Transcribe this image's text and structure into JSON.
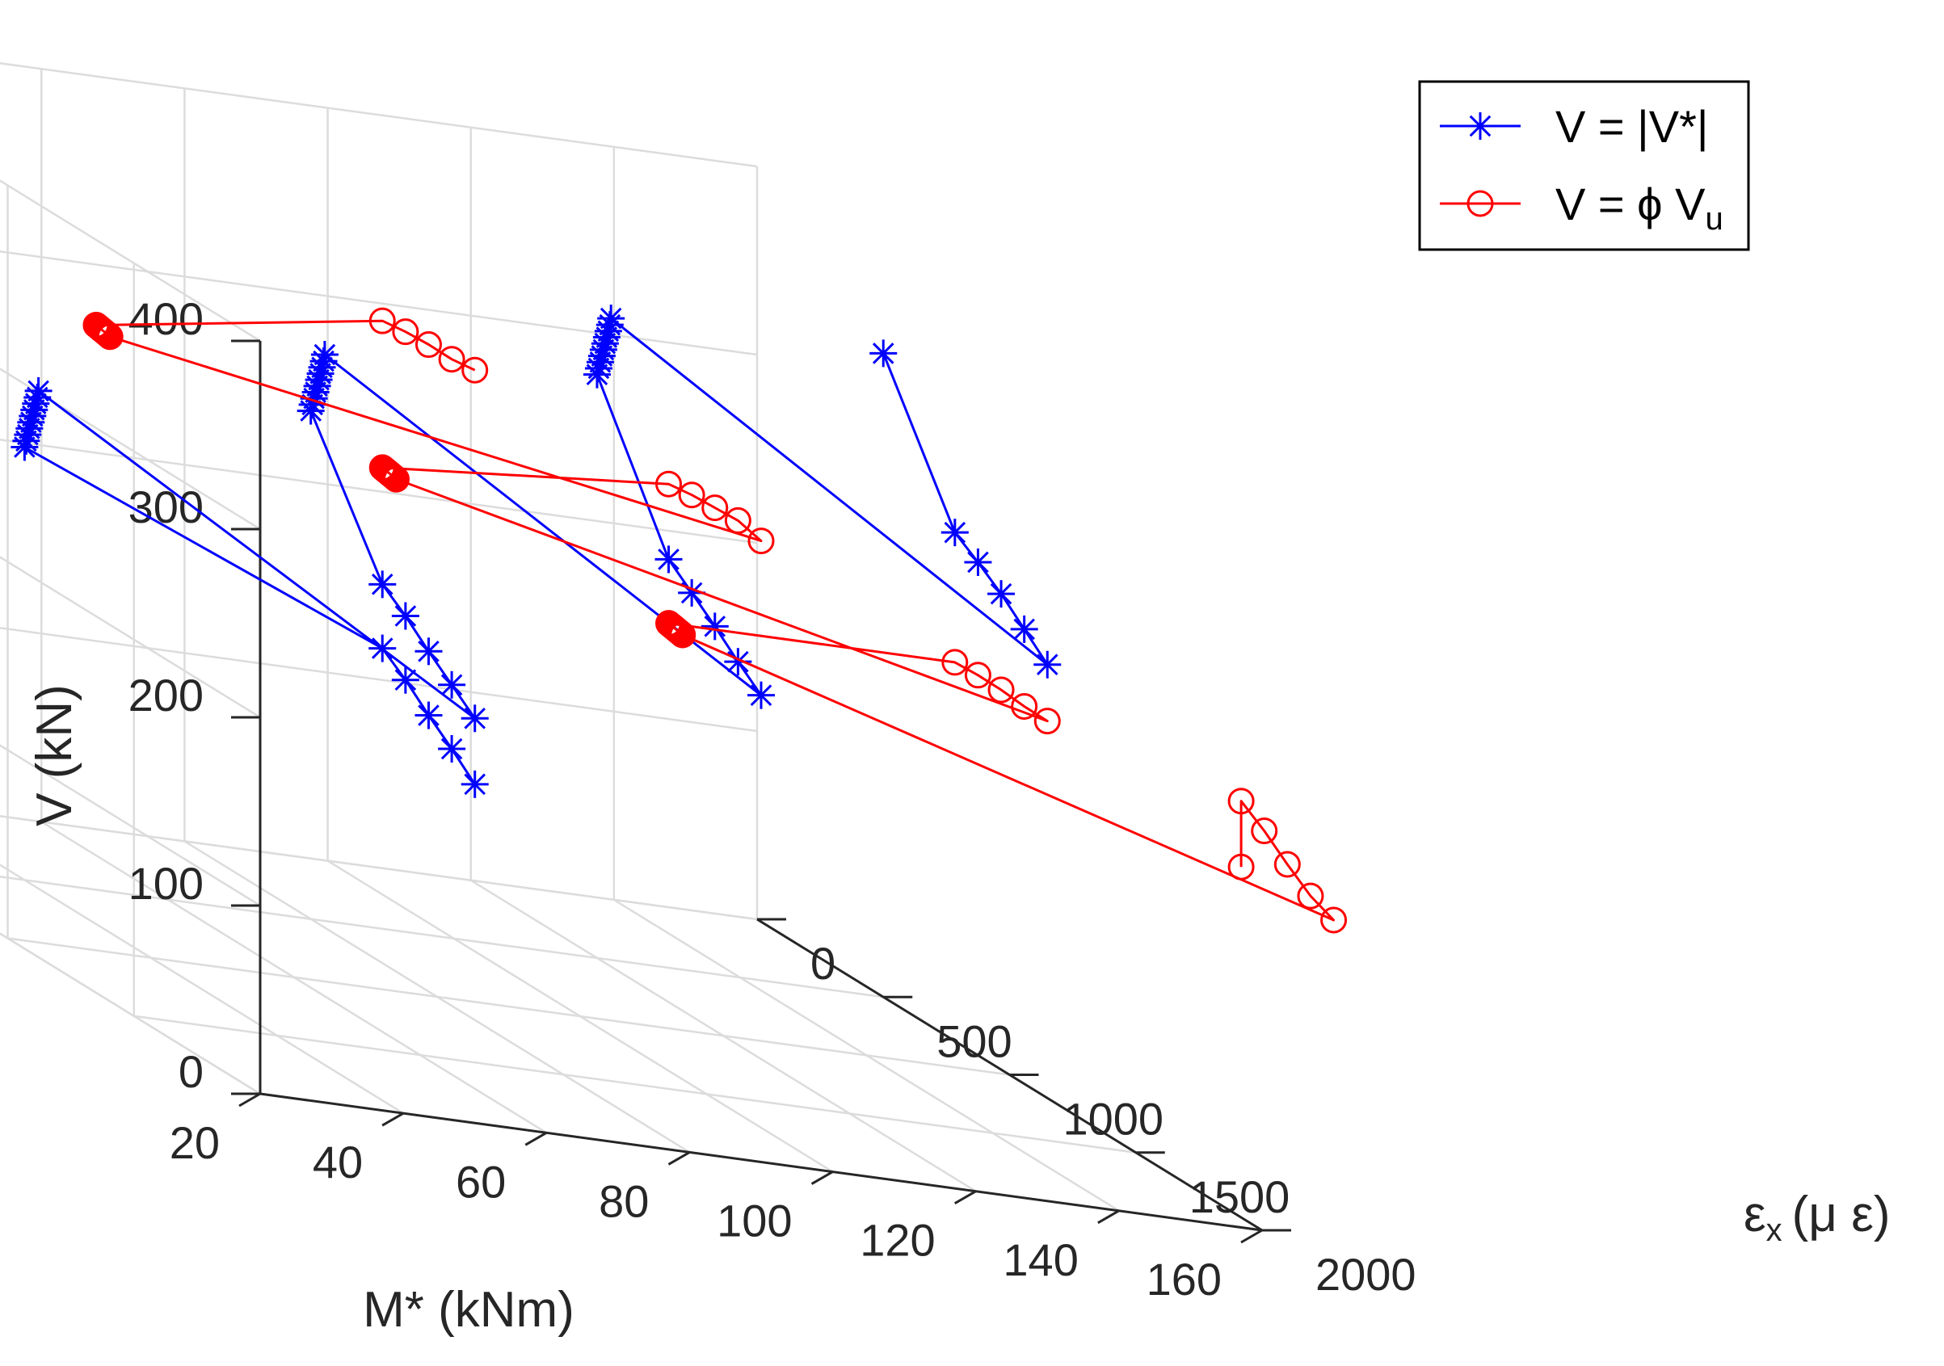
{
  "chart_data": {
    "type": "line3d",
    "x_label": "M* (kNm)",
    "y_label": "ε",
    "y_label_sub": "x",
    "y_label_unit": "(μ ε)",
    "z_label": "V (kN)",
    "x_ticks": [
      "20",
      "40",
      "60",
      "80",
      "100",
      "120",
      "140",
      "160"
    ],
    "y_ticks": [
      "0",
      "500",
      "1000",
      "1500",
      "2000"
    ],
    "z_ticks": [
      "0",
      "100",
      "200",
      "300",
      "400"
    ],
    "xlim": [
      20,
      160
    ],
    "ylim": [
      0,
      2000
    ],
    "zlim": [
      0,
      400
    ],
    "grid": true,
    "legend_position": "top-right",
    "legend": [
      {
        "name": "V = |V*|",
        "marker": "asterisk",
        "color": "#0000ff"
      },
      {
        "name": "V = ϕ V",
        "sub": "u",
        "marker": "circle",
        "color": "#ff0000"
      }
    ],
    "series": [
      {
        "name": "V = |V*|",
        "color": "#0000ff",
        "marker": "asterisk",
        "points": [
          [
            50,
            2000,
            180
          ],
          [
            60,
            1625,
            173
          ],
          [
            70,
            1250,
            165
          ],
          [
            80,
            875,
            158
          ],
          [
            90,
            500,
            149
          ],
          [
            40,
            500,
            230
          ],
          [
            41,
            478,
            232
          ],
          [
            42,
            456,
            234
          ],
          [
            43,
            434,
            236
          ],
          [
            44,
            412,
            238
          ],
          [
            45,
            390,
            240
          ],
          [
            46,
            368,
            242
          ],
          [
            47,
            346,
            244
          ],
          [
            48,
            324,
            246
          ],
          [
            49,
            300,
            248
          ],
          [
            50,
            2000,
            215
          ],
          [
            60,
            1625,
            207
          ],
          [
            70,
            1250,
            199
          ],
          [
            80,
            875,
            192
          ],
          [
            90,
            500,
            183
          ],
          [
            80,
            500,
            270
          ],
          [
            81,
            478,
            272
          ],
          [
            82,
            456,
            274
          ],
          [
            83,
            434,
            276
          ],
          [
            84,
            412,
            278
          ],
          [
            85,
            390,
            280
          ],
          [
            86,
            368,
            282
          ],
          [
            87,
            346,
            284
          ],
          [
            88,
            324,
            286
          ],
          [
            89,
            300,
            288
          ],
          [
            90,
            2000,
            248
          ],
          [
            100,
            1625,
            240
          ],
          [
            110,
            1250,
            233
          ],
          [
            120,
            875,
            225
          ],
          [
            130,
            500,
            217
          ],
          [
            120,
            500,
            310
          ],
          [
            121,
            478,
            312
          ],
          [
            122,
            456,
            314
          ],
          [
            123,
            434,
            316
          ],
          [
            124,
            412,
            318
          ],
          [
            125,
            390,
            320
          ],
          [
            126,
            368,
            322
          ],
          [
            127,
            346,
            324
          ],
          [
            128,
            324,
            326
          ],
          [
            129,
            300,
            328
          ],
          [
            130,
            2000,
            285
          ],
          [
            140,
            1625,
            278
          ],
          [
            150,
            1250,
            271
          ],
          [
            160,
            875,
            262
          ],
          [
            170,
            500,
            252
          ],
          [
            160,
            500,
            342
          ]
        ]
      },
      {
        "name": "V = ϕ Vu",
        "color": "#ff0000",
        "marker": "circle",
        "points": [
          [
            50,
            2000,
            400
          ],
          [
            60,
            1625,
            380
          ],
          [
            70,
            1250,
            362
          ],
          [
            80,
            875,
            343
          ],
          [
            90,
            500,
            323
          ],
          [
            50,
            500,
            300
          ],
          [
            51,
            478,
            298
          ],
          [
            52,
            456,
            296
          ],
          [
            53,
            434,
            294
          ],
          [
            54,
            412,
            292
          ],
          [
            55,
            390,
            290
          ],
          [
            56,
            368,
            288
          ],
          [
            57,
            346,
            286
          ],
          [
            58,
            324,
            284
          ],
          [
            59,
            300,
            282
          ],
          [
            90,
            2000,
            330
          ],
          [
            100,
            1625,
            315
          ],
          [
            110,
            1250,
            296
          ],
          [
            120,
            875,
            277
          ],
          [
            130,
            500,
            257
          ],
          [
            90,
            500,
            245
          ],
          [
            91,
            478,
            243
          ],
          [
            92,
            456,
            241
          ],
          [
            93,
            434,
            239
          ],
          [
            94,
            412,
            237
          ],
          [
            95,
            390,
            235
          ],
          [
            96,
            368,
            233
          ],
          [
            97,
            346,
            231
          ],
          [
            98,
            324,
            229
          ],
          [
            99,
            300,
            227
          ],
          [
            130,
            2000,
            255
          ],
          [
            140,
            1625,
            237
          ],
          [
            150,
            1250,
            220
          ],
          [
            160,
            875,
            202
          ],
          [
            170,
            500,
            183
          ],
          [
            130,
            500,
            183
          ],
          [
            131,
            478,
            181
          ],
          [
            132,
            456,
            179
          ],
          [
            133,
            434,
            177
          ],
          [
            134,
            412,
            175
          ],
          [
            135,
            390,
            173
          ],
          [
            136,
            368,
            171
          ],
          [
            137,
            346,
            169
          ],
          [
            138,
            324,
            167
          ],
          [
            139,
            300,
            165
          ],
          [
            170,
            2000,
            170
          ],
          [
            180,
            1625,
            157
          ],
          [
            190,
            1250,
            148
          ],
          [
            200,
            875,
            140
          ],
          [
            210,
            500,
            130
          ],
          [
            210,
            500,
            95
          ]
        ]
      }
    ]
  }
}
